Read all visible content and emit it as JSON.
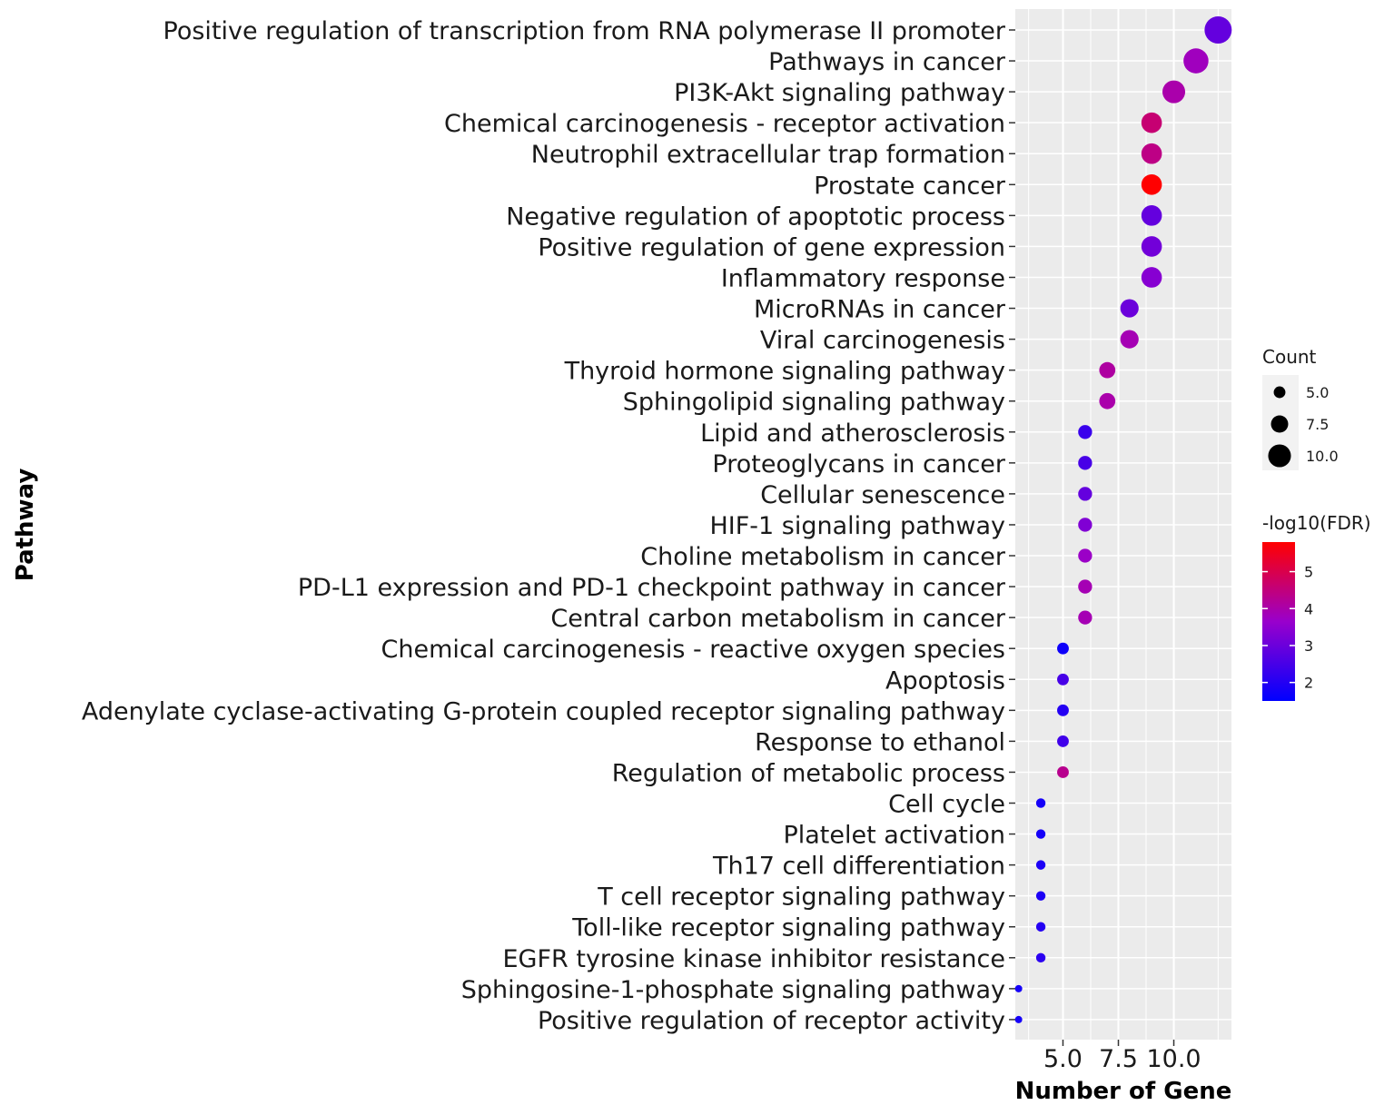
{
  "chart_data": {
    "type": "scatter",
    "xlabel": "Number of Gene",
    "ylabel": "Pathway",
    "x_ticks": [
      "5.0",
      "7.5",
      "10.0"
    ],
    "x_tick_values": [
      5.0,
      7.5,
      10.0
    ],
    "xlim": [
      2.85,
      12.6
    ],
    "grid": true,
    "legend_position": "right",
    "size_legend": {
      "title": "Count",
      "labels": [
        "5.0",
        "7.5",
        "10.0"
      ],
      "values": [
        5.0,
        7.5,
        10.0
      ]
    },
    "color_legend": {
      "title": "-log10(FDR)",
      "labels": [
        "5",
        "4",
        "3",
        "2"
      ],
      "values": [
        5,
        4,
        3,
        2
      ],
      "range": [
        1.5,
        5.8
      ],
      "low_color": "#0000ff",
      "high_color": "#ff0000"
    },
    "points": [
      {
        "pathway": "Positive regulation of transcription from RNA polymerase II promoter",
        "count": 12,
        "neg_log10_fdr": 2.9
      },
      {
        "pathway": "Pathways in cancer",
        "count": 11,
        "neg_log10_fdr": 3.8
      },
      {
        "pathway": "PI3K-Akt signaling pathway",
        "count": 10,
        "neg_log10_fdr": 4.0
      },
      {
        "pathway": "Chemical carcinogenesis - receptor activation",
        "count": 9,
        "neg_log10_fdr": 4.6
      },
      {
        "pathway": "Neutrophil extracellular trap formation",
        "count": 9,
        "neg_log10_fdr": 4.4
      },
      {
        "pathway": "Prostate cancer",
        "count": 9,
        "neg_log10_fdr": 5.8
      },
      {
        "pathway": "Negative regulation of apoptotic process",
        "count": 9,
        "neg_log10_fdr": 2.9
      },
      {
        "pathway": "Positive regulation of gene expression",
        "count": 9,
        "neg_log10_fdr": 3.1
      },
      {
        "pathway": "Inflammatory response",
        "count": 9,
        "neg_log10_fdr": 3.4
      },
      {
        "pathway": "MicroRNAs in cancer",
        "count": 8,
        "neg_log10_fdr": 3.0
      },
      {
        "pathway": "Viral carcinogenesis",
        "count": 8,
        "neg_log10_fdr": 3.9
      },
      {
        "pathway": "Thyroid hormone signaling pathway",
        "count": 7,
        "neg_log10_fdr": 4.1
      },
      {
        "pathway": "Sphingolipid signaling pathway",
        "count": 7,
        "neg_log10_fdr": 4.0
      },
      {
        "pathway": "Lipid and atherosclerosis",
        "count": 6,
        "neg_log10_fdr": 2.3
      },
      {
        "pathway": "Proteoglycans in cancer",
        "count": 6,
        "neg_log10_fdr": 2.5
      },
      {
        "pathway": "Cellular senescence",
        "count": 6,
        "neg_log10_fdr": 2.9
      },
      {
        "pathway": "HIF-1 signaling pathway",
        "count": 6,
        "neg_log10_fdr": 3.3
      },
      {
        "pathway": "Choline metabolism in cancer",
        "count": 6,
        "neg_log10_fdr": 3.7
      },
      {
        "pathway": "PD-L1 expression and PD-1 checkpoint pathway in cancer",
        "count": 6,
        "neg_log10_fdr": 3.9
      },
      {
        "pathway": "Central carbon metabolism in cancer",
        "count": 6,
        "neg_log10_fdr": 3.9
      },
      {
        "pathway": "Chemical carcinogenesis - reactive oxygen species",
        "count": 5,
        "neg_log10_fdr": 1.7
      },
      {
        "pathway": "Apoptosis",
        "count": 5,
        "neg_log10_fdr": 2.5
      },
      {
        "pathway": "Adenylate cyclase-activating G-protein coupled receptor signaling pathway",
        "count": 5,
        "neg_log10_fdr": 2.0
      },
      {
        "pathway": "Response to ethanol",
        "count": 5,
        "neg_log10_fdr": 2.4
      },
      {
        "pathway": "Regulation of metabolic process",
        "count": 5,
        "neg_log10_fdr": 4.3
      },
      {
        "pathway": "Cell cycle",
        "count": 4,
        "neg_log10_fdr": 1.8
      },
      {
        "pathway": "Platelet activation",
        "count": 4,
        "neg_log10_fdr": 1.8
      },
      {
        "pathway": "Th17 cell differentiation",
        "count": 4,
        "neg_log10_fdr": 1.9
      },
      {
        "pathway": "T cell receptor signaling pathway",
        "count": 4,
        "neg_log10_fdr": 1.9
      },
      {
        "pathway": "Toll-like receptor signaling pathway",
        "count": 4,
        "neg_log10_fdr": 2.0
      },
      {
        "pathway": "EGFR tyrosine kinase inhibitor resistance",
        "count": 4,
        "neg_log10_fdr": 2.1
      },
      {
        "pathway": "Sphingosine-1-phosphate signaling pathway",
        "count": 3,
        "neg_log10_fdr": 1.8
      },
      {
        "pathway": "Positive regulation of receptor activity",
        "count": 3,
        "neg_log10_fdr": 1.8
      }
    ]
  }
}
